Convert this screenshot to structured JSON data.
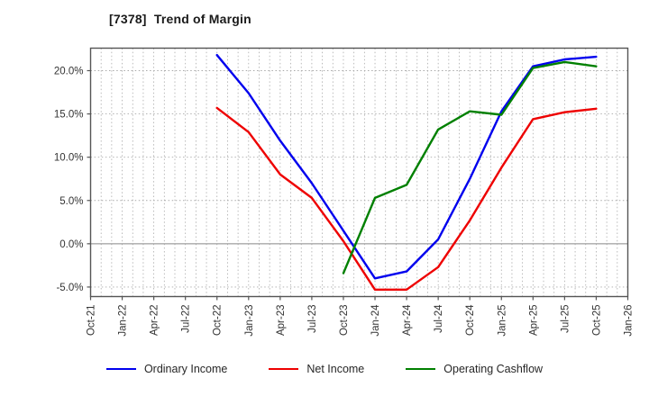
{
  "title": "[7378]  Trend of Margin",
  "chart_data": {
    "type": "line",
    "title": "[7378]  Trend of Margin",
    "x_tick_labels": [
      "Oct-21",
      "Jan-22",
      "Apr-22",
      "Jul-22",
      "Oct-22",
      "Jan-23",
      "Apr-23",
      "Jul-23",
      "Oct-23",
      "Jan-24",
      "Apr-24",
      "Jul-24",
      "Oct-24",
      "Jan-25",
      "Apr-25",
      "Jul-25",
      "Oct-25",
      "Jan-26"
    ],
    "x_total_months": 51,
    "y_ticks": [
      20,
      15,
      10,
      5,
      0,
      -5
    ],
    "y_tick_labels": [
      "20.0%",
      "15.0%",
      "10.0%",
      "5.0%",
      "0.0%",
      "-5.0%"
    ],
    "ylim": [
      -6.1,
      22.6
    ],
    "grid": "monthly vertical dotted, 5% horizontal dotted, solid zero line",
    "legend_position": "bottom-center",
    "series": [
      {
        "name": "Ordinary Income",
        "color": "#0000ee",
        "start_label": "Oct-22",
        "start_month": 12,
        "step_months": 3,
        "values": [
          21.8,
          17.4,
          11.9,
          7.0,
          1.5,
          -4.0,
          -3.2,
          0.5,
          7.5,
          15.3,
          20.5,
          21.3,
          21.6
        ]
      },
      {
        "name": "Net Income",
        "color": "#ee0000",
        "start_label": "Oct-22",
        "start_month": 12,
        "step_months": 3,
        "values": [
          15.7,
          12.9,
          8.0,
          5.3,
          0.3,
          -5.3,
          -5.3,
          -2.7,
          2.7,
          8.8,
          14.4,
          15.2,
          15.6
        ]
      },
      {
        "name": "Operating Cashflow",
        "color": "#008000",
        "start_label": "Oct-23",
        "start_month": 24,
        "step_months": 3,
        "values": [
          -3.4,
          5.3,
          6.8,
          13.2,
          15.3,
          14.9,
          20.3,
          21.0,
          20.5
        ]
      }
    ],
    "colors": {
      "grid": "#aaaaaa",
      "zero_line": "#888888",
      "axis_border": "#555555",
      "tick_text": "#333333"
    }
  }
}
